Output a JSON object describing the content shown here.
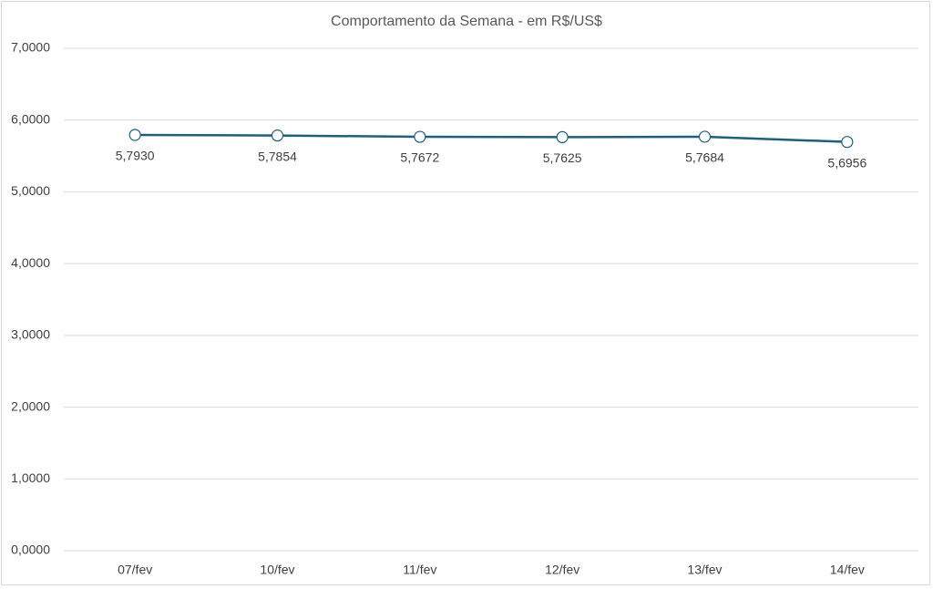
{
  "chart_data": {
    "type": "line",
    "title": "Comportamento da Semana - em R$/US$",
    "categories": [
      "07/fev",
      "10/fev",
      "11/fev",
      "12/fev",
      "13/fev",
      "14/fev"
    ],
    "series": [
      {
        "name": "R$/US$",
        "color": "#1f5f7c",
        "values": [
          5.793,
          5.7854,
          5.7672,
          5.7625,
          5.7684,
          5.6956
        ],
        "value_labels": [
          "5,7930",
          "5,7854",
          "5,7672",
          "5,7625",
          "5,7684",
          "5,6956"
        ]
      }
    ],
    "ylim": [
      0,
      7
    ],
    "yticks": [
      {
        "value": 0,
        "label": "0,0000"
      },
      {
        "value": 1,
        "label": "1,0000"
      },
      {
        "value": 2,
        "label": "2,0000"
      },
      {
        "value": 3,
        "label": "3,0000"
      },
      {
        "value": 4,
        "label": "4,0000"
      },
      {
        "value": 5,
        "label": "5,0000"
      },
      {
        "value": 6,
        "label": "6,0000"
      },
      {
        "value": 7,
        "label": "7,0000"
      }
    ],
    "grid": true
  }
}
